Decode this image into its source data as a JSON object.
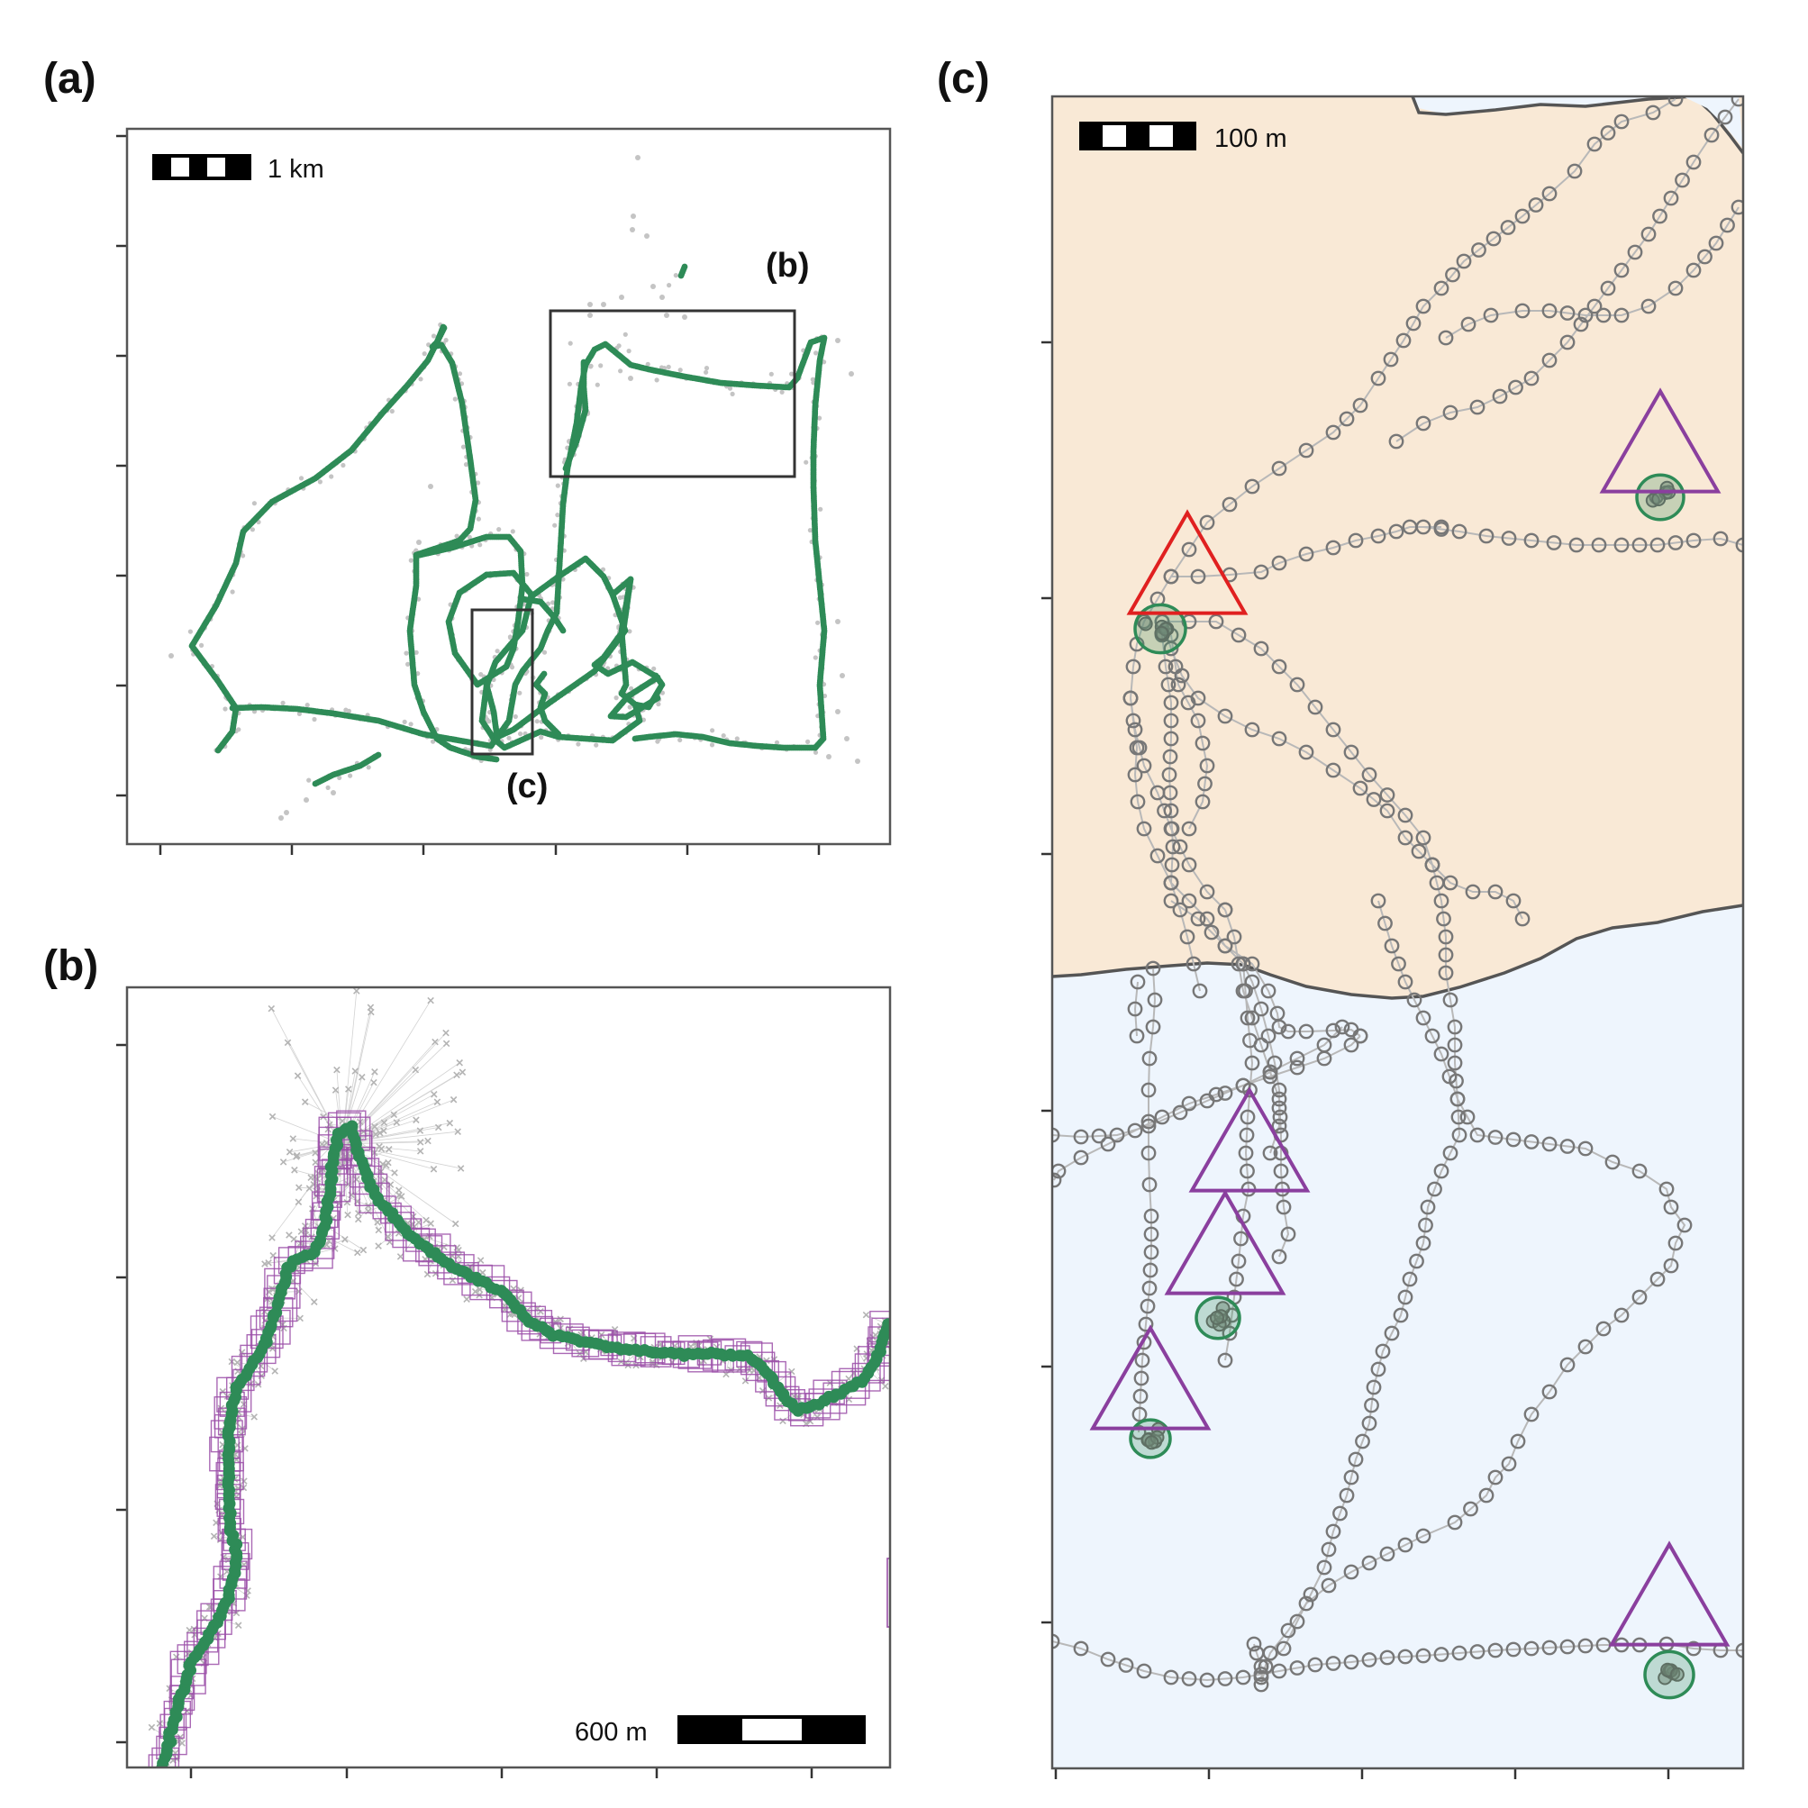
{
  "panels": {
    "a": {
      "label": "(a)",
      "inset_b_label": "(b)",
      "inset_c_label": "(c)",
      "scalebar": "1 km"
    },
    "b": {
      "label": "(b)",
      "scalebar": "600 m"
    },
    "c": {
      "label": "(c)",
      "scalebar": "100 m"
    }
  },
  "colors": {
    "track_green": "#2e8b57",
    "raw_fix_grey": "#c4c4c4",
    "box_purple": "#9b4fa8",
    "triangle_purple": "#8a3f9e",
    "triangle_red": "#e02020",
    "land": "#f9e9d6",
    "water": "#eef5fd",
    "coast": "#555555",
    "circle_grey": "#777777"
  },
  "chart_data": [
    {
      "type": "scatter",
      "panel": "(a)",
      "scalebar": "1 km",
      "grid": false,
      "x_ticks": 6,
      "y_ticks": 7,
      "series": [
        {
          "values": "green smoothed track (dense points along route)"
        },
        {
          "values": "grey raw fixes"
        }
      ],
      "insets": [
        "(b)",
        "(c)"
      ]
    },
    {
      "type": "scatter",
      "panel": "(b)",
      "scalebar": "600 m",
      "grid": false,
      "x_ticks": 5,
      "y_ticks": 4
    },
    {
      "type": "scatter",
      "panel": "(c)",
      "scalebar": "100 m",
      "grid": false,
      "x_ticks": 5,
      "y_ticks": 6,
      "triangles": {
        "purple": 5,
        "red": 1
      }
    }
  ]
}
